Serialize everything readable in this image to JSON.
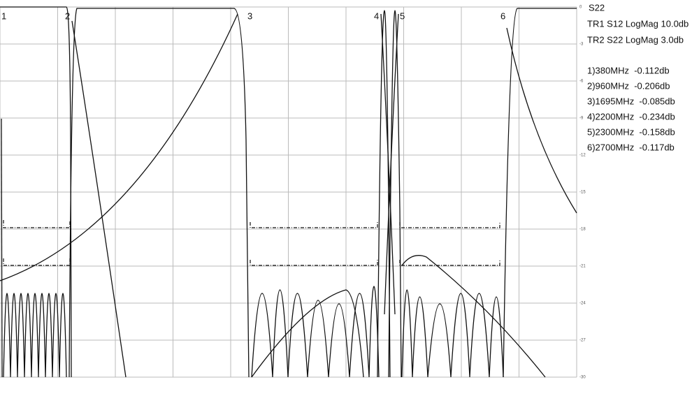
{
  "screen": {
    "trace_title": "S22",
    "traces": [
      "TR1 S12 LogMag 10.0db",
      "TR2 S22 LogMag 3.0db"
    ],
    "marker_readouts": [
      "1)380MHz  -0.112db",
      "2)960MHz  -0.206db",
      "3)1695MHz  -0.085db",
      "4)2200MHz  -0.234db",
      "5)2300MHz  -0.158db",
      "6)2700MHz  -0.117db"
    ],
    "marker_labels": [
      "1",
      "2",
      "3",
      "4",
      "5",
      "6"
    ],
    "axis_labels": [
      "0",
      "-3",
      "-6",
      "-9",
      "-12",
      "-15",
      "-18",
      "-21",
      "-24",
      "-27",
      "-30"
    ]
  }
}
